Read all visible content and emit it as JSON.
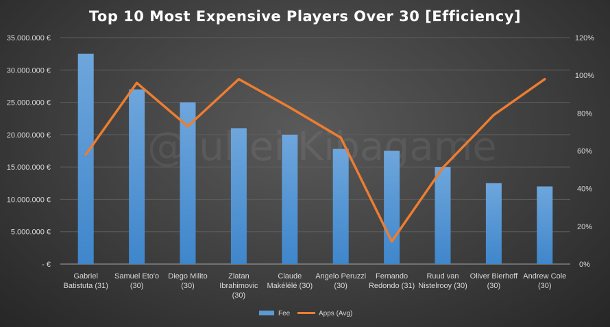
{
  "chart_data": {
    "type": "bar",
    "title": "Top 10 Most Expensive Players Over 30 [Efficiency]",
    "watermark": "@Jubei Kibagame",
    "categories": [
      [
        "Gabriel",
        "Batistuta (31)"
      ],
      [
        "Samuel Eto'o",
        "(30)"
      ],
      [
        "Diego Milito",
        "(30)"
      ],
      [
        "Zlatan",
        "Ibrahimovic",
        "(30)"
      ],
      [
        "Claude",
        "Makélélé (30)"
      ],
      [
        "Angelo Peruzzi",
        "(30)"
      ],
      [
        "Fernando",
        "Redondo (31)"
      ],
      [
        "Ruud van",
        "Nistelrooy (30)"
      ],
      [
        "Oliver Bierhoff",
        "(30)"
      ],
      [
        "Andrew Cole",
        "(30)"
      ]
    ],
    "series": [
      {
        "name": "Fee",
        "type": "bar",
        "axis": "left",
        "color": "#5b9bd5",
        "values": [
          32500000,
          27000000,
          25000000,
          21000000,
          20000000,
          17800000,
          17500000,
          15000000,
          12500000,
          12000000
        ]
      },
      {
        "name": "Apps (Avg)",
        "type": "line",
        "axis": "right",
        "color": "#ed7d31",
        "values": [
          58,
          96,
          73,
          98,
          83,
          67,
          12,
          51,
          79,
          98
        ]
      }
    ],
    "y_left": {
      "range": [
        0,
        35000000
      ],
      "ticks": [
        "- €",
        "5.000.000 €",
        "10.000.000 €",
        "15.000.000 €",
        "20.000.000 €",
        "25.000.000 €",
        "30.000.000 €",
        "35.000.000 €"
      ]
    },
    "y_right": {
      "range": [
        0,
        120
      ],
      "ticks": [
        "0%",
        "20%",
        "40%",
        "60%",
        "80%",
        "100%",
        "120%"
      ]
    },
    "grid": true,
    "legend": "bottom"
  }
}
